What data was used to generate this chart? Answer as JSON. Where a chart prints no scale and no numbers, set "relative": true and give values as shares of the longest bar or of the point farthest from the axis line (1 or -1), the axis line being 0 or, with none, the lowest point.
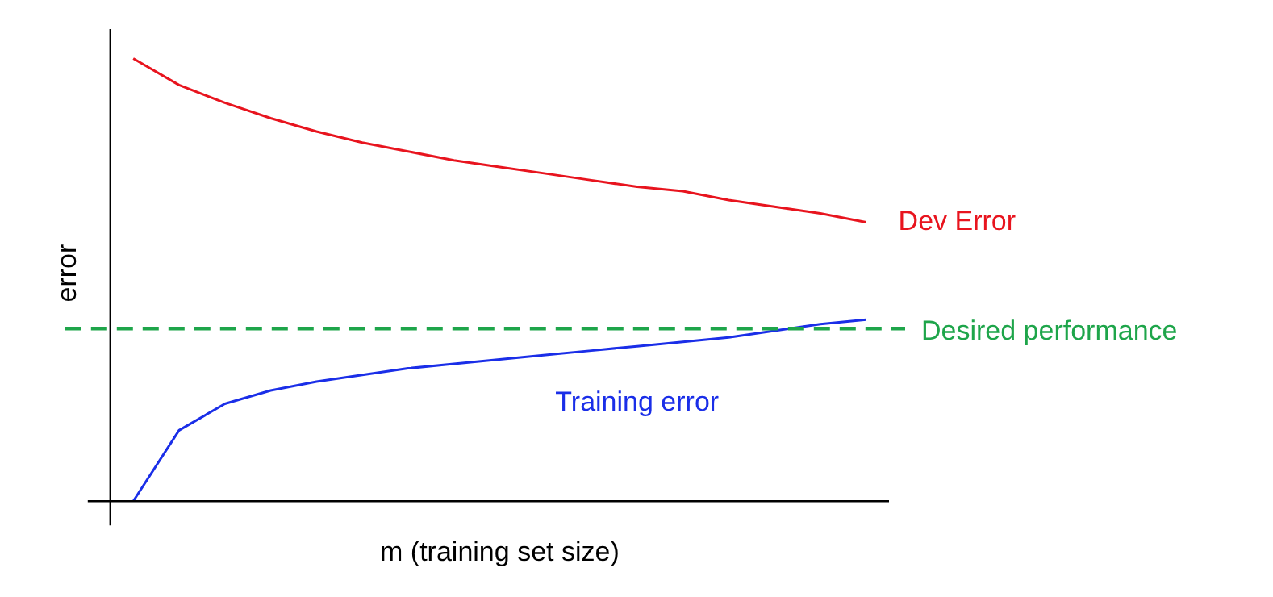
{
  "chart_data": {
    "type": "line",
    "relative": true,
    "xlabel": "m (training set size)",
    "ylabel": "error",
    "categories": [
      null,
      null,
      null,
      null,
      null,
      null,
      null,
      null,
      null,
      null,
      null,
      null,
      null,
      null,
      null,
      null,
      null
    ],
    "series": [
      {
        "name": "Dev Error",
        "color": "#e8141e",
        "values": [
          1,
          0.94,
          0.9,
          0.865,
          0.835,
          0.81,
          0.79,
          0.77,
          0.755,
          0.74,
          0.725,
          0.71,
          0.7,
          0.68,
          0.665,
          0.65,
          0.63
        ]
      },
      {
        "name": "Training error",
        "color": "#1a2ee8",
        "values": [
          0,
          0.16,
          0.22,
          0.25,
          0.27,
          0.285,
          0.3,
          0.31,
          0.32,
          0.33,
          0.34,
          0.35,
          0.36,
          0.37,
          0.385,
          0.4,
          0.41
        ]
      }
    ],
    "ref_lines": [
      {
        "axis": "y",
        "value": 0.39,
        "label": "Desired performance",
        "color": "#1ea54a",
        "line_style": "dashed"
      }
    ],
    "grid": false,
    "legend": false,
    "marker": "none",
    "line_style": "solid"
  }
}
